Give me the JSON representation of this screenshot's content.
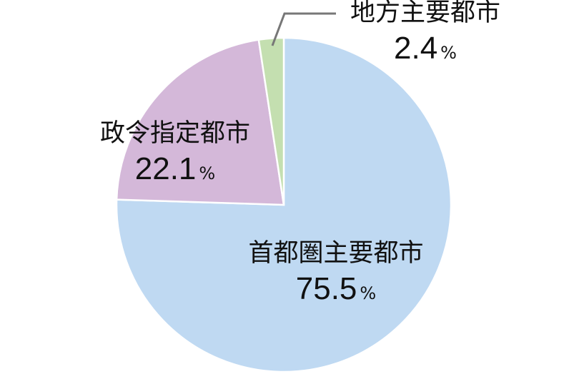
{
  "chart_data": {
    "type": "pie",
    "start_angle": "12 o'clock",
    "direction": "clockwise",
    "slices": [
      {
        "label": "首都圏主要都市",
        "value": 75.5,
        "value_text": "75.5",
        "color": "#bfd9f2"
      },
      {
        "label": "政令指定都市",
        "value": 22.1,
        "value_text": "22.1",
        "color": "#d4b8d9"
      },
      {
        "label": "地方主要都市",
        "value": 2.4,
        "value_text": "2.4",
        "color": "#c4dfb0"
      }
    ],
    "unit": "%",
    "leader_line_color": "#777777"
  }
}
